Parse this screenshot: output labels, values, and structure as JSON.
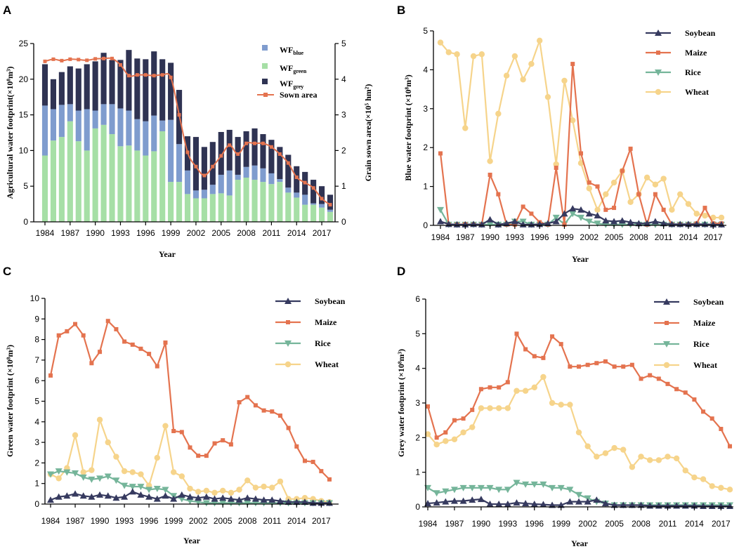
{
  "colors": {
    "blue": "#7f9cce",
    "green": "#a6dfa6",
    "grey": "#2f3353",
    "sown": "#e4734f",
    "soybean": "#363a5f",
    "maize": "#e4734f",
    "rice": "#75b59a",
    "wheat": "#f6d48b",
    "axis": "#000000"
  },
  "chart_data": [
    {
      "panel": "A",
      "type": "bar",
      "stacked": true,
      "xlabel": "Year",
      "ylabel": "Agricultural water footprint(×10⁸m³)",
      "y2label": "Grain sown area(×10⁵ hm²)",
      "ylim": [
        0,
        25
      ],
      "y2lim": [
        0,
        5
      ],
      "yticks": [
        "0",
        "5",
        "10",
        "15",
        "20",
        "25"
      ],
      "y2ticks": [
        "0",
        "1",
        "2",
        "3",
        "4",
        "5"
      ],
      "xticks": [
        "1984",
        "1987",
        "1990",
        "1993",
        "1996",
        "1999",
        "2002",
        "2005",
        "2008",
        "2011",
        "2014",
        "2017"
      ],
      "years": [
        1984,
        1985,
        1986,
        1987,
        1988,
        1989,
        1990,
        1991,
        1992,
        1993,
        1994,
        1995,
        1996,
        1997,
        1998,
        1999,
        2000,
        2001,
        2002,
        2003,
        2004,
        2005,
        2006,
        2007,
        2008,
        2009,
        2010,
        2011,
        2012,
        2013,
        2014,
        2015,
        2016,
        2017,
        2018
      ],
      "legend": {
        "blue": "WF",
        "blue_sub": "blue",
        "green": "WF",
        "green_sub": "green",
        "grey": "WF",
        "grey_sub": "grey",
        "sown": "Sown area"
      },
      "series": [
        {
          "name": "WFgreen",
          "values": [
            9.3,
            11.4,
            11.9,
            14.1,
            11.3,
            10.0,
            13.1,
            13.6,
            12.3,
            10.6,
            10.7,
            10.0,
            9.3,
            9.9,
            12.7,
            5.6,
            5.6,
            3.9,
            3.3,
            3.3,
            3.9,
            4.0,
            3.7,
            5.9,
            6.2,
            5.9,
            5.6,
            5.3,
            5.6,
            4.1,
            3.4,
            2.4,
            2.4,
            2.0,
            1.4
          ]
        },
        {
          "name": "WFblue",
          "values": [
            7.0,
            4.4,
            4.5,
            2.4,
            4.3,
            5.8,
            2.5,
            2.9,
            4.2,
            5.3,
            4.9,
            4.4,
            4.8,
            5.0,
            1.5,
            8.7,
            5.3,
            3.3,
            1.1,
            1.2,
            1.3,
            2.6,
            3.5,
            0.7,
            1.5,
            2.0,
            1.9,
            1.5,
            0.4,
            0.7,
            0.7,
            1.4,
            0.2,
            0.5,
            0.3
          ]
        },
        {
          "name": "WFgrey",
          "values": [
            5.8,
            4.2,
            4.6,
            5.3,
            5.9,
            6.3,
            6.9,
            7.2,
            6.2,
            6.8,
            8.5,
            8.5,
            8.7,
            9.0,
            8.6,
            8.0,
            7.6,
            4.8,
            7.5,
            6.0,
            6.0,
            6.0,
            5.7,
            5.3,
            5.0,
            5.2,
            4.8,
            4.7,
            4.5,
            4.6,
            3.7,
            3.2,
            3.3,
            2.5,
            2.1
          ]
        },
        {
          "name": "Sown area",
          "axis": "right",
          "values": [
            4.5,
            4.56,
            4.52,
            4.56,
            4.55,
            4.53,
            4.57,
            4.58,
            4.58,
            4.4,
            4.1,
            4.12,
            4.12,
            4.1,
            4.12,
            4.05,
            3.0,
            1.95,
            1.55,
            1.3,
            1.55,
            1.85,
            2.15,
            1.9,
            2.2,
            2.2,
            2.2,
            2.1,
            1.9,
            1.65,
            1.25,
            1.1,
            0.95,
            0.65,
            0.48
          ]
        }
      ]
    },
    {
      "panel": "B",
      "type": "line",
      "xlabel": "Year",
      "ylabel": "Blue water footprint (×10⁸m³)",
      "ylim": [
        0,
        5
      ],
      "yticks": [
        "0",
        "1",
        "2",
        "3",
        "4",
        "5"
      ],
      "xticks": [
        "1984",
        "1987",
        "1990",
        "1993",
        "1996",
        "1999",
        "2002",
        "2005",
        "2008",
        "2011",
        "2014",
        "2017"
      ],
      "years": [
        1984,
        1985,
        1986,
        1987,
        1988,
        1989,
        1990,
        1991,
        1992,
        1993,
        1994,
        1995,
        1996,
        1997,
        1998,
        1999,
        2000,
        2001,
        2002,
        2003,
        2004,
        2005,
        2006,
        2007,
        2008,
        2009,
        2010,
        2011,
        2012,
        2013,
        2014,
        2015,
        2016,
        2017,
        2018
      ],
      "series": [
        {
          "name": "Soybean",
          "values": [
            0.1,
            0.03,
            0.02,
            0.02,
            0.03,
            0.02,
            0.15,
            0.02,
            0.05,
            0.1,
            0.02,
            0.02,
            0.03,
            0.05,
            0.1,
            0.3,
            0.43,
            0.4,
            0.3,
            0.25,
            0.12,
            0.1,
            0.12,
            0.08,
            0.05,
            0.05,
            0.1,
            0.05,
            0.03,
            0.03,
            0.03,
            0.03,
            0.03,
            0.02,
            0.02
          ]
        },
        {
          "name": "Maize",
          "values": [
            1.85,
            0.02,
            0.02,
            0.03,
            0.02,
            0.02,
            1.3,
            0.8,
            0.02,
            0.02,
            0.48,
            0.3,
            0.08,
            0.02,
            1.48,
            0.02,
            4.15,
            1.85,
            1.1,
            1.0,
            0.4,
            0.45,
            1.4,
            1.97,
            0.8,
            0.02,
            0.8,
            0.4,
            0.02,
            0.02,
            0.02,
            0.05,
            0.45,
            0.05,
            0.05
          ]
        },
        {
          "name": "Rice",
          "values": [
            0.4,
            0.02,
            0.02,
            0.02,
            0.02,
            0.02,
            0.02,
            0.02,
            0.02,
            0.1,
            0.1,
            0.02,
            0.02,
            0.02,
            0.2,
            0.03,
            0.3,
            0.2,
            0.1,
            0.05,
            0.02,
            0.02,
            0.02,
            0.02,
            0.02,
            0.02,
            0.02,
            0.02,
            0.02,
            0.02,
            0.02,
            0.02,
            0.02,
            0.02,
            0.02
          ]
        },
        {
          "name": "Wheat",
          "values": [
            4.7,
            4.45,
            4.4,
            2.5,
            4.35,
            4.4,
            1.65,
            2.87,
            3.85,
            4.35,
            3.75,
            4.15,
            4.75,
            3.3,
            1.57,
            3.72,
            2.7,
            1.6,
            0.95,
            0.4,
            0.8,
            1.1,
            1.4,
            0.6,
            0.8,
            1.23,
            1.05,
            1.2,
            0.4,
            0.8,
            0.55,
            0.3,
            0.25,
            0.2,
            0.2
          ]
        }
      ],
      "legend": [
        "Soybean",
        "Maize",
        "Rice",
        "Wheat"
      ]
    },
    {
      "panel": "C",
      "type": "line",
      "xlabel": "Year",
      "ylabel": "Green water footprint (×10⁸m³)",
      "ylim": [
        0,
        10
      ],
      "yticks": [
        "0",
        "1",
        "2",
        "3",
        "4",
        "5",
        "6",
        "7",
        "8",
        "9",
        "10"
      ],
      "xticks": [
        "1984",
        "1987",
        "1990",
        "1993",
        "1996",
        "1999",
        "2002",
        "2005",
        "2008",
        "2011",
        "2014",
        "2017"
      ],
      "years": [
        1984,
        1985,
        1986,
        1987,
        1988,
        1989,
        1990,
        1991,
        1992,
        1993,
        1994,
        1995,
        1996,
        1997,
        1998,
        1999,
        2000,
        2001,
        2002,
        2003,
        2004,
        2005,
        2006,
        2007,
        2008,
        2009,
        2010,
        2011,
        2012,
        2013,
        2014,
        2015,
        2016,
        2017,
        2018
      ],
      "series": [
        {
          "name": "Soybean",
          "values": [
            0.2,
            0.35,
            0.4,
            0.5,
            0.4,
            0.35,
            0.45,
            0.4,
            0.3,
            0.35,
            0.6,
            0.45,
            0.35,
            0.25,
            0.4,
            0.25,
            0.45,
            0.35,
            0.3,
            0.35,
            0.25,
            0.3,
            0.25,
            0.2,
            0.3,
            0.25,
            0.2,
            0.2,
            0.15,
            0.1,
            0.1,
            0.1,
            0.05,
            0.05,
            0.05
          ]
        },
        {
          "name": "Maize",
          "values": [
            6.25,
            8.2,
            8.4,
            8.75,
            8.2,
            6.85,
            7.4,
            8.9,
            8.5,
            7.9,
            7.75,
            7.55,
            7.3,
            6.7,
            7.85,
            3.55,
            3.5,
            2.75,
            2.35,
            2.35,
            2.95,
            3.1,
            2.9,
            4.95,
            5.2,
            4.8,
            4.55,
            4.5,
            4.3,
            3.7,
            2.8,
            2.1,
            2.05,
            1.6,
            1.2
          ]
        },
        {
          "name": "Rice",
          "values": [
            1.45,
            1.6,
            1.55,
            1.5,
            1.3,
            1.2,
            1.25,
            1.35,
            1.15,
            0.9,
            0.85,
            0.85,
            0.7,
            0.75,
            0.7,
            0.4,
            0.25,
            0.15,
            0.1,
            0.05,
            0.05,
            0.05,
            0.05,
            0.05,
            0.05,
            0.05,
            0.05,
            0.05,
            0.05,
            0.05,
            0.05,
            0.05,
            0.05,
            0.05,
            0.05
          ]
        },
        {
          "name": "Wheat",
          "values": [
            1.45,
            1.25,
            1.75,
            3.35,
            1.55,
            1.65,
            4.1,
            3.0,
            2.3,
            1.6,
            1.55,
            1.45,
            0.9,
            2.25,
            3.8,
            1.55,
            1.35,
            0.75,
            0.6,
            0.65,
            0.55,
            0.65,
            0.55,
            0.7,
            1.15,
            0.8,
            0.85,
            0.8,
            1.1,
            0.25,
            0.25,
            0.3,
            0.25,
            0.15,
            0.1
          ]
        }
      ],
      "legend": [
        "Soybean",
        "Maize",
        "Rice",
        "Wheat"
      ]
    },
    {
      "panel": "D",
      "type": "line",
      "xlabel": "Year",
      "ylabel": "Grey water footprint (×10⁸m³)",
      "ylim": [
        0,
        6
      ],
      "yticks": [
        "0",
        "1",
        "2",
        "3",
        "4",
        "5",
        "6"
      ],
      "xticks": [
        "1984",
        "1987",
        "1990",
        "1993",
        "1996",
        "1999",
        "2002",
        "2005",
        "2008",
        "2011",
        "2014",
        "2017"
      ],
      "years": [
        1984,
        1985,
        1986,
        1987,
        1988,
        1989,
        1990,
        1991,
        1992,
        1993,
        1994,
        1995,
        1996,
        1997,
        1998,
        1999,
        2000,
        2001,
        2002,
        2003,
        2004,
        2005,
        2006,
        2007,
        2008,
        2009,
        2010,
        2011,
        2012,
        2013,
        2014,
        2015,
        2016,
        2017,
        2018
      ],
      "series": [
        {
          "name": "Soybean",
          "values": [
            0.1,
            0.12,
            0.15,
            0.17,
            0.17,
            0.2,
            0.22,
            0.08,
            0.08,
            0.08,
            0.12,
            0.1,
            0.08,
            0.07,
            0.05,
            0.05,
            0.15,
            0.15,
            0.15,
            0.2,
            0.1,
            0.05,
            0.05,
            0.05,
            0.05,
            0.03,
            0.03,
            0.03,
            0.03,
            0.03,
            0.03,
            0.02,
            0.02,
            0.02,
            0.02
          ]
        },
        {
          "name": "Maize",
          "values": [
            2.9,
            2.0,
            2.15,
            2.5,
            2.55,
            2.8,
            3.4,
            3.45,
            3.45,
            3.6,
            5.0,
            4.55,
            4.35,
            4.3,
            4.92,
            4.7,
            4.05,
            4.05,
            4.1,
            4.15,
            4.2,
            4.05,
            4.05,
            4.1,
            3.7,
            3.8,
            3.7,
            3.55,
            3.4,
            3.3,
            3.1,
            2.75,
            2.55,
            2.25,
            1.75
          ]
        },
        {
          "name": "Rice",
          "values": [
            0.55,
            0.4,
            0.45,
            0.5,
            0.55,
            0.55,
            0.55,
            0.55,
            0.5,
            0.5,
            0.7,
            0.65,
            0.65,
            0.65,
            0.55,
            0.55,
            0.5,
            0.35,
            0.25,
            0.15,
            0.1,
            0.05,
            0.05,
            0.05,
            0.05,
            0.05,
            0.05,
            0.05,
            0.05,
            0.05,
            0.05,
            0.05,
            0.05,
            0.05,
            0.05
          ]
        },
        {
          "name": "Wheat",
          "values": [
            2.1,
            1.8,
            1.9,
            1.95,
            2.15,
            2.3,
            2.85,
            2.85,
            2.85,
            2.85,
            3.35,
            3.35,
            3.45,
            3.75,
            3.0,
            2.95,
            2.95,
            2.15,
            1.75,
            1.45,
            1.55,
            1.7,
            1.65,
            1.15,
            1.45,
            1.35,
            1.35,
            1.45,
            1.4,
            1.05,
            0.85,
            0.8,
            0.6,
            0.55,
            0.5
          ]
        }
      ],
      "legend": [
        "Soybean",
        "Maize",
        "Rice",
        "Wheat"
      ]
    }
  ]
}
